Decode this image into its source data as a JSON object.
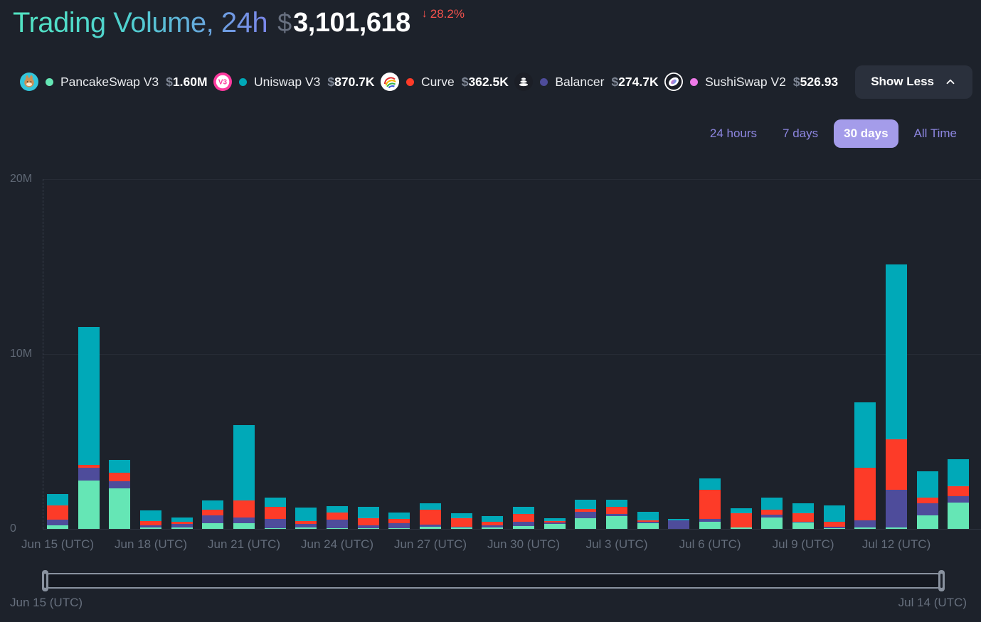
{
  "header": {
    "title": "Trading Volume, 24h",
    "currency_symbol": "$",
    "value": "3,101,618",
    "change_arrow": "↓",
    "change_percent": "28.2%",
    "change_color": "#f4524d"
  },
  "legend": {
    "items": [
      {
        "name": "PancakeSwap V3",
        "currency": "$",
        "value": "1.60M",
        "dot_color": "#65e6b5",
        "icon": "pancakeswap-icon"
      },
      {
        "name": "Uniswap V3",
        "currency": "$",
        "value": "870.7K",
        "dot_color": "#00a9b8",
        "icon": "uniswap-icon"
      },
      {
        "name": "Curve",
        "currency": "$",
        "value": "362.5K",
        "dot_color": "#fd3b28",
        "icon": "curve-icon"
      },
      {
        "name": "Balancer",
        "currency": "$",
        "value": "274.7K",
        "dot_color": "#4e4c9b",
        "icon": "balancer-icon"
      },
      {
        "name": "SushiSwap V2",
        "currency": "$",
        "value": "526.93",
        "dot_color": "#ee7ae8",
        "icon": "sushiswap-icon"
      }
    ],
    "toggle_label": "Show Less"
  },
  "time_tabs": {
    "options": [
      "24 hours",
      "7 days",
      "30 days",
      "All Time"
    ],
    "active": "30 days"
  },
  "chart_data": {
    "type": "bar",
    "stacked": true,
    "unit": "millions USD",
    "ylim": [
      0,
      20
    ],
    "y_ticks": [
      "0",
      "10M",
      "20M"
    ],
    "grid": true,
    "x": [
      "Jun 15",
      "Jun 16",
      "Jun 17",
      "Jun 18",
      "Jun 19",
      "Jun 20",
      "Jun 21",
      "Jun 22",
      "Jun 23",
      "Jun 24",
      "Jun 25",
      "Jun 26",
      "Jun 27",
      "Jun 28",
      "Jun 29",
      "Jun 30",
      "Jul 1",
      "Jul 2",
      "Jul 3",
      "Jul 4",
      "Jul 5",
      "Jul 6",
      "Jul 7",
      "Jul 8",
      "Jul 9",
      "Jul 10",
      "Jul 11",
      "Jul 12",
      "Jul 13",
      "Jul 14"
    ],
    "x_tick_indices": [
      0,
      3,
      6,
      9,
      12,
      15,
      18,
      21,
      24,
      27
    ],
    "x_tick_labels": [
      "Jun 15 (UTC)",
      "Jun 18 (UTC)",
      "Jun 21 (UTC)",
      "Jun 24 (UTC)",
      "Jun 27 (UTC)",
      "Jun 30 (UTC)",
      "Jul 3 (UTC)",
      "Jul 6 (UTC)",
      "Jul 9 (UTC)",
      "Jul 12 (UTC)"
    ],
    "series": [
      {
        "name": "PancakeSwap V3",
        "color": "#65e6b5",
        "values": [
          0.2,
          2.77,
          2.32,
          0.08,
          0.08,
          0.33,
          0.33,
          0.04,
          0.08,
          0.04,
          0.04,
          0.04,
          0.12,
          0.08,
          0.08,
          0.16,
          0.28,
          0.61,
          0.73,
          0.33,
          0.02,
          0.41,
          0.08,
          0.65,
          0.37,
          0.04,
          0.08,
          0.08,
          0.77,
          1.5
        ]
      },
      {
        "name": "Balancer",
        "color": "#4e4c9b",
        "values": [
          0.33,
          0.73,
          0.41,
          0.12,
          0.2,
          0.45,
          0.33,
          0.53,
          0.2,
          0.49,
          0.16,
          0.28,
          0.12,
          0.04,
          0.12,
          0.24,
          0.08,
          0.37,
          0.12,
          0.08,
          0.45,
          0.16,
          0.02,
          0.16,
          0.02,
          0.08,
          0.41,
          2.16,
          0.69,
          0.37
        ]
      },
      {
        "name": "Curve",
        "color": "#fd3b28",
        "values": [
          0.81,
          0.16,
          0.49,
          0.24,
          0.12,
          0.33,
          0.98,
          0.69,
          0.16,
          0.41,
          0.41,
          0.24,
          0.85,
          0.49,
          0.2,
          0.45,
          0.08,
          0.16,
          0.41,
          0.08,
          0.02,
          1.68,
          0.78,
          0.28,
          0.49,
          0.28,
          3.01,
          2.89,
          0.33,
          0.57
        ]
      },
      {
        "name": "Uniswap V3",
        "color": "#00a9b8",
        "values": [
          0.65,
          7.89,
          0.73,
          0.61,
          0.24,
          0.53,
          4.31,
          0.53,
          0.77,
          0.37,
          0.65,
          0.37,
          0.37,
          0.28,
          0.33,
          0.41,
          0.16,
          0.53,
          0.41,
          0.49,
          0.1,
          0.65,
          0.28,
          0.69,
          0.57,
          0.94,
          3.74,
          10.0,
          1.5,
          1.54
        ]
      }
    ]
  },
  "range_slider": {
    "start_label": "Jun 15 (UTC)",
    "end_label": "Jul 14 (UTC)"
  }
}
